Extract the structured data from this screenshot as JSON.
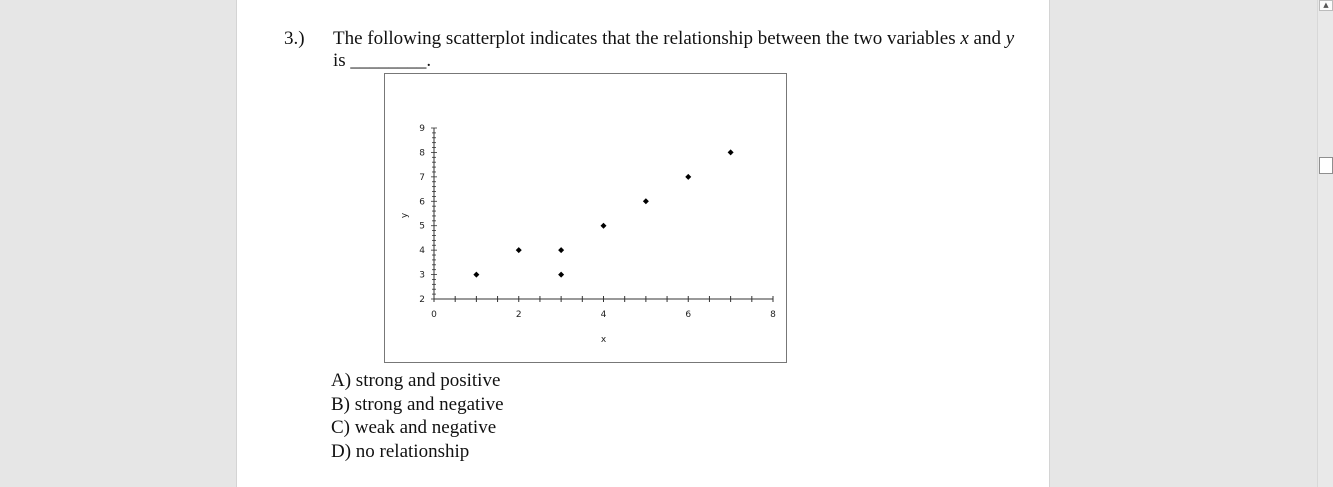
{
  "question": {
    "number": "3.)",
    "text_before": "The following scatterplot indicates that the relationship between the two variables ",
    "var_x": "x",
    "text_and": " and ",
    "var_y": "y",
    "text_line2": "is ________."
  },
  "chart_data": {
    "type": "scatter",
    "xlabel": "x",
    "ylabel": "y",
    "xlim": [
      0,
      8
    ],
    "ylim": [
      2,
      9
    ],
    "x_ticks": [
      "0",
      "2",
      "4",
      "6",
      "8"
    ],
    "y_ticks": [
      "2",
      "3",
      "4",
      "5",
      "6",
      "7",
      "8",
      "9"
    ],
    "points": [
      {
        "x": 1,
        "y": 3
      },
      {
        "x": 2,
        "y": 4
      },
      {
        "x": 3,
        "y": 4
      },
      {
        "x": 3,
        "y": 3
      },
      {
        "x": 4,
        "y": 5
      },
      {
        "x": 5,
        "y": 6
      },
      {
        "x": 6,
        "y": 7
      },
      {
        "x": 7,
        "y": 8
      }
    ]
  },
  "choices": [
    "A) strong and positive",
    "B) strong and negative",
    "C) weak and negative",
    "D) no relationship"
  ],
  "scrollbar": {
    "up_icon": "▲"
  }
}
